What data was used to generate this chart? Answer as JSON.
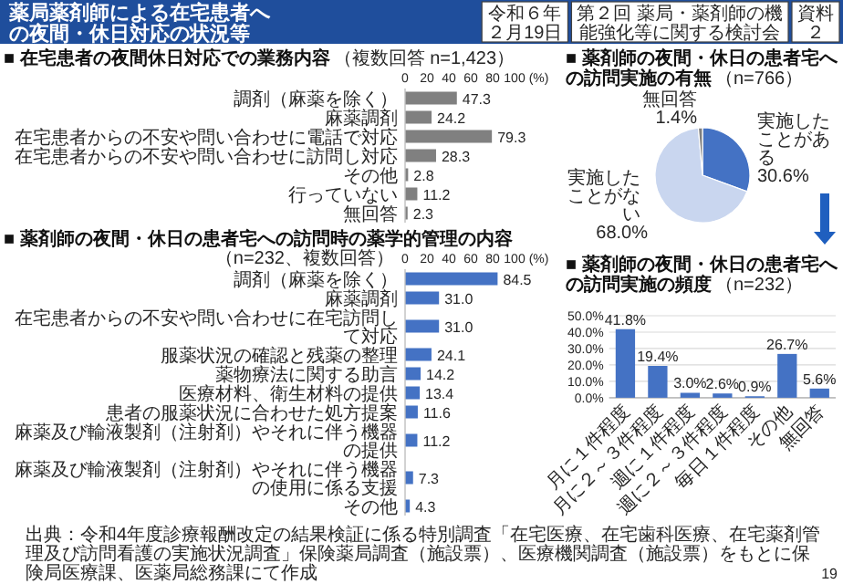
{
  "chart_data": [
    {
      "type": "other",
      "title": "薬局薬剤師による在宅患者への夜間・休日対応の状況等",
      "annotations": [
        "令和６年２月19日",
        "第２回 薬局・薬剤師の機能強化等に関する検討会",
        "資料２",
        "出典：令和4年度診療報酬改定の結果検証に係る特別調査「在宅医療、在宅歯科医療、在宅薬剤管理及び訪問看護の実施状況調査」保険薬局調査（施設票）、医療機関調査（施設票）をもとに保険局医療課、医薬局総務課にて作成",
        "19"
      ]
    },
    {
      "type": "bar",
      "orientation": "horizontal",
      "title": "■ 在宅患者の夜間休日対応での業務内容",
      "subtitle": "（複数回答 n=1,423）",
      "xlabel": "(%)",
      "xlim": [
        0,
        100
      ],
      "xticks": [
        0,
        20,
        40,
        60,
        80,
        100
      ],
      "color": "#808080",
      "categories": [
        "調剤（麻薬を除く）",
        "麻薬調剤",
        "在宅患者からの不安や問い合わせに電話で対応",
        "在宅患者からの不安や問い合わせに訪問し対応",
        "その他",
        "行っていない",
        "無回答"
      ],
      "values": [
        47.3,
        24.2,
        79.3,
        28.3,
        2.8,
        11.2,
        2.3
      ],
      "value_labels": [
        "47.3",
        "24.2",
        "79.3",
        "28.3",
        "2.8",
        "11.2",
        "2.3"
      ]
    },
    {
      "type": "pie",
      "title": "■ 薬剤師の夜間・休日の患者宅への訪問実施の有無",
      "subtitle": "（n=766）",
      "categories": [
        "実施したことがある",
        "実施したことがない",
        "無回答"
      ],
      "values": [
        30.6,
        68.0,
        1.4
      ],
      "value_labels": [
        "30.6%",
        "68.0%",
        "1.4%"
      ],
      "colors": [
        "#4472c4",
        "#c9d6ef",
        "#7f7f7f"
      ]
    },
    {
      "type": "bar",
      "title": "■ 薬剤師の夜間・休日の患者宅への訪問実施の頻度",
      "subtitle": "（n=232）",
      "color": "#4472c4",
      "grid": "y",
      "ylim": [
        0,
        50
      ],
      "yticks": [
        {
          "value": 0,
          "label": "0.0%"
        },
        {
          "value": 10,
          "label": "10.0%"
        },
        {
          "value": 20,
          "label": "20.0%"
        },
        {
          "value": 30,
          "label": "30.0%"
        },
        {
          "value": 40,
          "label": "40.0%"
        },
        {
          "value": 50,
          "label": "50.0%"
        }
      ],
      "categories": [
        "月に１件程度",
        "月に２～３件程度",
        "週に１件程度",
        "週に２～３件程度",
        "毎日１件程度",
        "その他",
        "無回答"
      ],
      "values": [
        41.8,
        19.4,
        3.0,
        2.6,
        0.9,
        26.7,
        5.6
      ],
      "value_labels": [
        "41.8%",
        "19.4%",
        "3.0%",
        "2.6%",
        "0.9%",
        "26.7%",
        "5.6%"
      ]
    },
    {
      "type": "bar",
      "orientation": "horizontal",
      "title": "■ 薬剤師の夜間・休日の患者宅への訪問時の薬学的管理の内容",
      "subtitle": "（n=232、複数回答）",
      "xlabel": "(%)",
      "xlim": [
        0,
        100
      ],
      "xticks": [
        0,
        20,
        40,
        60,
        80,
        100
      ],
      "color": "#4472c4",
      "categories": [
        "調剤（麻薬を除く）",
        "麻薬調剤",
        "在宅患者からの不安や問い合わせに在宅訪問して対応",
        "服薬状況の確認と残薬の整理",
        "薬物療法に関する助言",
        "医療材料、衛生材料の提供",
        "患者の服薬状況に合わせた処方提案",
        "麻薬及び輸液製剤（注射剤）やそれに伴う機器の提供",
        "麻薬及び輸液製剤（注射剤）やそれに伴う機器の使用に係る支援",
        "その他"
      ],
      "values": [
        84.5,
        31.0,
        31.0,
        24.1,
        14.2,
        13.4,
        11.6,
        11.2,
        7.3,
        4.3
      ],
      "value_labels": [
        "84.5",
        "31.0",
        "31.0",
        "24.1",
        "14.2",
        "13.4",
        "11.6",
        "11.2",
        "7.3",
        "4.3"
      ]
    }
  ]
}
